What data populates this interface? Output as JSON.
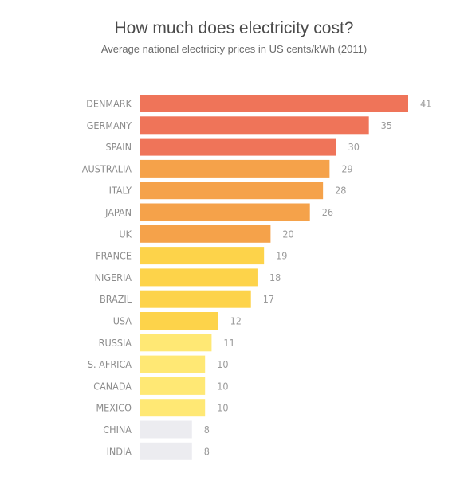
{
  "title": "How much does electricity cost?",
  "subtitle": "Average national electricity prices in US cents/kWh (2011)",
  "chart_data": {
    "type": "bar",
    "orientation": "horizontal",
    "title": "How much does electricity cost?",
    "subtitle": "Average national electricity prices in US cents/kWh (2011)",
    "xlabel": "",
    "ylabel": "",
    "xlim": [
      0,
      41
    ],
    "grid": false,
    "legend": "none",
    "categories": [
      "DENMARK",
      "GERMANY",
      "SPAIN",
      "AUSTRALIA",
      "ITALY",
      "JAPAN",
      "UK",
      "FRANCE",
      "NIGERIA",
      "BRAZIL",
      "USA",
      "RUSSIA",
      "S. AFRICA",
      "CANADA",
      "MEXICO",
      "CHINA",
      "INDIA"
    ],
    "values": [
      41,
      35,
      30,
      29,
      28,
      26,
      20,
      19,
      18,
      17,
      12,
      11,
      10,
      10,
      10,
      8,
      8
    ],
    "colors": [
      "#ef7459",
      "#ef7459",
      "#ef7459",
      "#f5a24a",
      "#f5a24a",
      "#f5a24a",
      "#f5a24a",
      "#fdd34a",
      "#fdd34a",
      "#fdd34a",
      "#fdd34a",
      "#ffe874",
      "#ffe874",
      "#ffe874",
      "#ffe874",
      "#ececf0",
      "#ececf0"
    ]
  }
}
